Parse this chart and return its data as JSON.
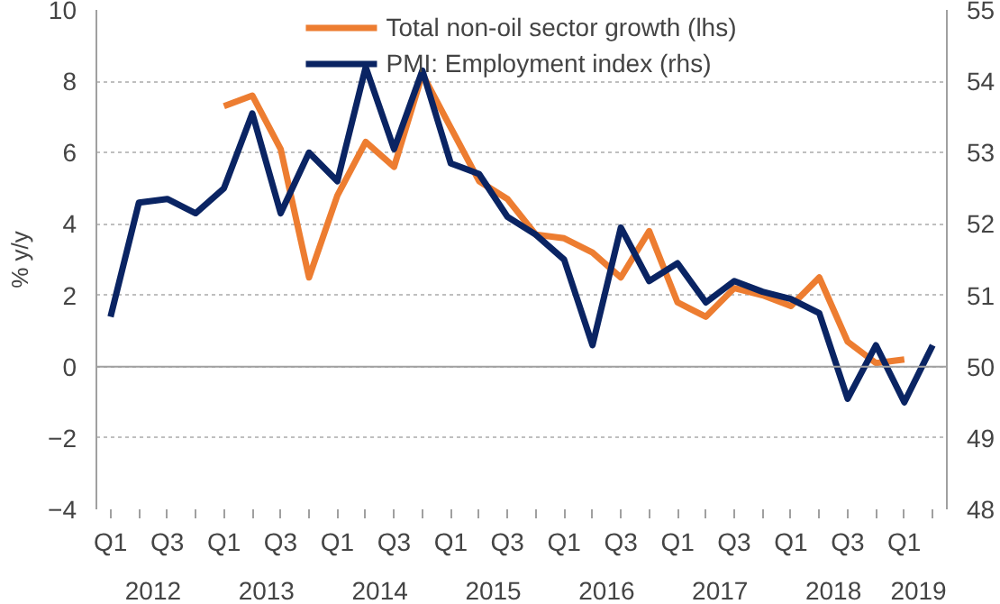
{
  "chart_data": {
    "type": "line",
    "ylabel": "% y/y",
    "categories": [
      "Q1",
      null,
      "Q3",
      null,
      "Q1",
      null,
      "Q3",
      null,
      "Q1",
      null,
      "Q3",
      null,
      "Q1",
      null,
      "Q3",
      null,
      "Q1",
      null,
      "Q3",
      null,
      "Q1",
      null,
      "Q3",
      null,
      "Q1",
      null,
      "Q3",
      null,
      "Q1",
      null
    ],
    "annotations": [
      "2012",
      "2013",
      "2014",
      "2015",
      "2016",
      "2017",
      "2018",
      "2019"
    ],
    "series": [
      {
        "name": "Total non-oil sector growth (lhs)",
        "color": "#ed7d31",
        "values": [
          null,
          null,
          null,
          null,
          7.3,
          7.6,
          6.1,
          2.5,
          4.8,
          6.3,
          5.6,
          8.2,
          6.7,
          5.2,
          4.7,
          3.7,
          3.6,
          3.2,
          2.5,
          3.8,
          1.8,
          1.4,
          2.2,
          2.0,
          1.7,
          2.5,
          0.7,
          0.1,
          0.2,
          null
        ]
      },
      {
        "name": "PMI: Employment index (rhs)",
        "color": "#0a2463",
        "axis": "y2",
        "values": [
          50.7,
          52.3,
          52.35,
          52.15,
          52.5,
          53.55,
          52.15,
          53.0,
          52.6,
          54.2,
          53.05,
          54.15,
          52.85,
          52.7,
          52.1,
          51.85,
          51.5,
          50.3,
          51.95,
          51.2,
          51.45,
          50.9,
          51.2,
          51.05,
          50.95,
          50.75,
          49.55,
          50.3,
          49.5,
          50.3
        ]
      }
    ],
    "ylim": [
      -4,
      10
    ],
    "yticks": [
      -4,
      -2,
      0,
      2,
      4,
      6,
      8,
      10
    ],
    "y2lim": [
      48,
      55
    ],
    "y2ticks": [
      48,
      49,
      50,
      51,
      52,
      53,
      54,
      55
    ],
    "grid": "y",
    "legend": "top",
    "marker": "none",
    "line_style": "solid"
  }
}
